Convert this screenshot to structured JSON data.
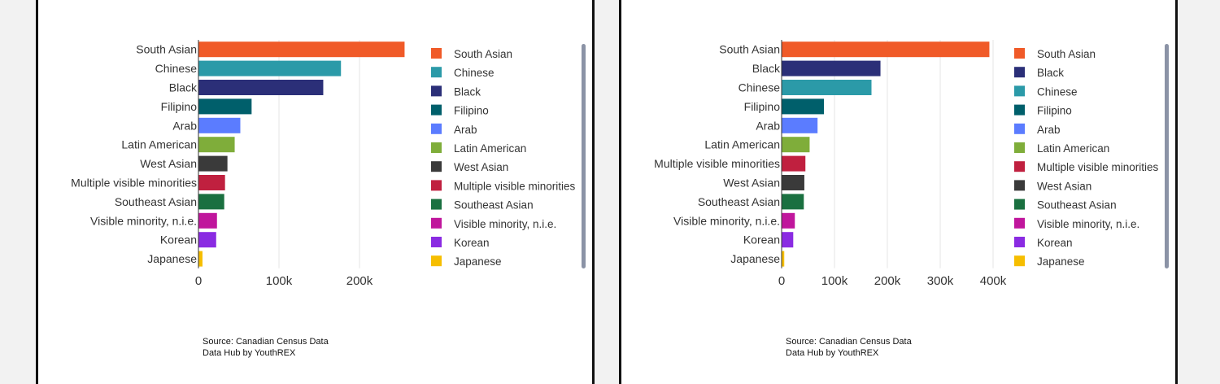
{
  "colors": {
    "South Asian": "#f05a28",
    "Chinese": "#2b9aa8",
    "Black": "#2b2f78",
    "Filipino": "#005f6b",
    "Arab": "#5b7cff",
    "Latin American": "#7fad3a",
    "West Asian": "#3a3a3a",
    "Multiple visible minorities": "#c0203f",
    "Southeast Asian": "#1a7040",
    "Visible minority, n.i.e.": "#c0169c",
    "Korean": "#8a2be2",
    "Japanese": "#f6be00"
  },
  "chart_data": [
    {
      "type": "bar",
      "orientation": "horizontal",
      "categories": [
        "South Asian",
        "Chinese",
        "Black",
        "Filipino",
        "Arab",
        "Latin American",
        "West Asian",
        "Multiple visible minorities",
        "Southeast Asian",
        "Visible minority, n.i.e.",
        "Korean",
        "Japanese"
      ],
      "values": [
        256000,
        177000,
        155000,
        66000,
        52000,
        45000,
        36000,
        33000,
        32000,
        23000,
        22000,
        5000
      ],
      "xlim": [
        0,
        260000
      ],
      "xticks": [
        0,
        100000,
        200000
      ],
      "xtick_labels": [
        "0",
        "100k",
        "200k"
      ],
      "grid": true,
      "legend": "right",
      "legend_entries": [
        "South Asian",
        "Chinese",
        "Black",
        "Filipino",
        "Arab",
        "Latin American",
        "West Asian",
        "Multiple visible minorities",
        "Southeast Asian",
        "Visible minority, n.i.e.",
        "Korean",
        "Japanese"
      ]
    },
    {
      "type": "bar",
      "orientation": "horizontal",
      "categories": [
        "South Asian",
        "Black",
        "Chinese",
        "Filipino",
        "Arab",
        "Latin American",
        "Multiple visible minorities",
        "West Asian",
        "Southeast Asian",
        "Visible minority, n.i.e.",
        "Korean",
        "Japanese"
      ],
      "values": [
        393000,
        187000,
        170000,
        80000,
        68000,
        53000,
        45000,
        43000,
        42000,
        25000,
        22000,
        5000
      ],
      "xlim": [
        0,
        420000
      ],
      "xticks": [
        0,
        100000,
        200000,
        300000,
        400000
      ],
      "xtick_labels": [
        "0",
        "100k",
        "200k",
        "300k",
        "400k"
      ],
      "grid": true,
      "legend": "right",
      "legend_entries": [
        "South Asian",
        "Black",
        "Chinese",
        "Filipino",
        "Arab",
        "Latin American",
        "Multiple visible minorities",
        "West Asian",
        "Southeast Asian",
        "Visible minority, n.i.e.",
        "Korean",
        "Japanese"
      ]
    }
  ],
  "panels": [
    {
      "source_line1": "Source: Canadian Census Data",
      "source_line2": "Data Hub by YouthREX"
    },
    {
      "source_line1": "Source: Canadian Census Data",
      "source_line2": "Data Hub by YouthREX"
    }
  ]
}
